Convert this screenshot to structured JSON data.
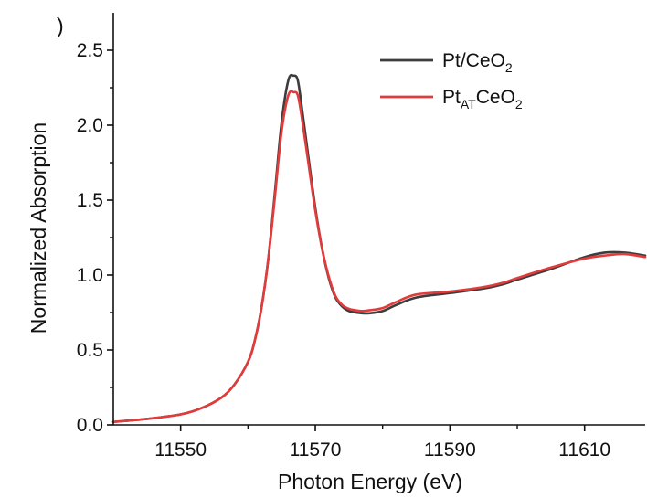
{
  "chart_data": {
    "type": "line",
    "panel_label": ")",
    "xlabel": "Photon Energy (eV)",
    "ylabel": "Normalized Absorption",
    "xlim": [
      11540,
      11619
    ],
    "ylim": [
      0,
      2.75
    ],
    "x_ticks": [
      11550,
      11570,
      11590,
      11610
    ],
    "x_tick_labels": [
      "11550",
      "11570",
      "11590",
      "11610"
    ],
    "x_minor_ticks": [
      11560,
      11580,
      11600
    ],
    "y_ticks": [
      0,
      0.5,
      1.0,
      1.5,
      2.0,
      2.5
    ],
    "y_tick_labels": [
      "0.0",
      "0.5",
      "1.0",
      "1.5",
      "2.0",
      "2.5"
    ],
    "y_minor_ticks": [
      0.25,
      0.75,
      1.25,
      1.75,
      2.25
    ],
    "legend_position": "top-right",
    "series": [
      {
        "name": "Pt/CeO",
        "name_sub": "2",
        "color": "#3d3d3d",
        "x": [
          11540,
          11545,
          11550,
          11553,
          11556,
          11558,
          11560,
          11561,
          11562,
          11563,
          11564,
          11565,
          11566,
          11566.8,
          11567.4,
          11568,
          11569,
          11570,
          11571,
          11572,
          11573,
          11574,
          11575,
          11576,
          11577,
          11578,
          11580,
          11582,
          11585,
          11590,
          11595,
          11598,
          11600,
          11605,
          11610,
          11613,
          11616,
          11619
        ],
        "y": [
          0.02,
          0.04,
          0.07,
          0.11,
          0.18,
          0.27,
          0.42,
          0.56,
          0.78,
          1.1,
          1.55,
          2.02,
          2.3,
          2.33,
          2.3,
          2.12,
          1.78,
          1.45,
          1.18,
          0.98,
          0.85,
          0.79,
          0.76,
          0.75,
          0.745,
          0.745,
          0.76,
          0.8,
          0.85,
          0.88,
          0.91,
          0.94,
          0.97,
          1.04,
          1.12,
          1.15,
          1.15,
          1.13
        ]
      },
      {
        "name": "Pt",
        "name_sub": "AT",
        "name_suffix": "CeO",
        "name_suffix_sub": "2",
        "color": "#e23b3b",
        "x": [
          11540,
          11545,
          11550,
          11553,
          11556,
          11558,
          11560,
          11561,
          11562,
          11563,
          11564,
          11565,
          11566,
          11566.8,
          11567.4,
          11568,
          11569,
          11570,
          11571,
          11572,
          11573,
          11574,
          11575,
          11576,
          11577,
          11578,
          11580,
          11582,
          11585,
          11590,
          11595,
          11598,
          11600,
          11605,
          11610,
          11613,
          11616,
          11619
        ],
        "y": [
          0.02,
          0.04,
          0.07,
          0.11,
          0.18,
          0.27,
          0.42,
          0.56,
          0.78,
          1.1,
          1.52,
          1.96,
          2.2,
          2.22,
          2.2,
          2.05,
          1.74,
          1.43,
          1.18,
          0.99,
          0.86,
          0.8,
          0.775,
          0.765,
          0.76,
          0.765,
          0.78,
          0.82,
          0.87,
          0.89,
          0.92,
          0.95,
          0.98,
          1.05,
          1.11,
          1.13,
          1.14,
          1.12
        ]
      }
    ]
  }
}
